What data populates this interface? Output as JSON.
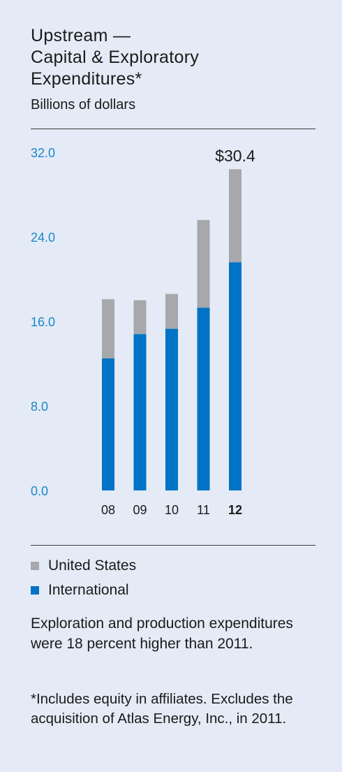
{
  "title_lines": [
    "Upstream —",
    "Capital & Exploratory",
    "Expenditures*"
  ],
  "subtitle": "Billions of dollars",
  "colors": {
    "united_states": "#a6a8ab",
    "international": "#0073c6",
    "axis_tick_text": "#1a87c9",
    "background": "#e4ebf6"
  },
  "chart_data": {
    "type": "bar",
    "stacked": true,
    "categories": [
      "08",
      "09",
      "10",
      "11",
      "12"
    ],
    "highlight_category": "12",
    "series": [
      {
        "name": "International",
        "values": [
          12.5,
          14.8,
          15.3,
          17.3,
          21.6
        ]
      },
      {
        "name": "United States",
        "values": [
          5.6,
          3.2,
          3.3,
          8.3,
          8.8
        ]
      }
    ],
    "ylim": [
      0,
      32
    ],
    "yticks": [
      "0.0",
      "8.0",
      "16.0",
      "24.0",
      "32.0"
    ],
    "annotation": {
      "category": "12",
      "text": "$30.4"
    },
    "grid": false
  },
  "legend": [
    {
      "label": "United States",
      "color": "#a6a8ab"
    },
    {
      "label": "International",
      "color": "#0073c6"
    }
  ],
  "note": "Exploration and production expenditures were 18 percent higher than 2011.",
  "footnote": "*Includes equity in affiliates. Excludes the acquisition of Atlas Energy, Inc., in 2011."
}
